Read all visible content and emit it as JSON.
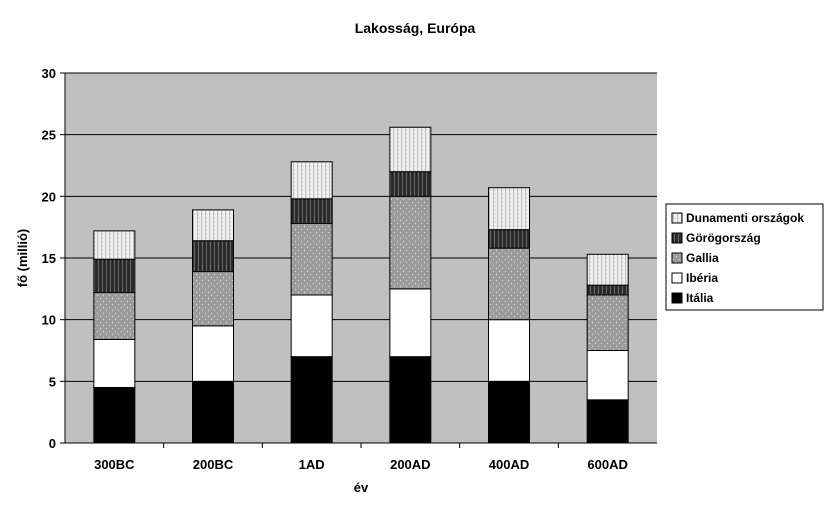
{
  "chart_data": {
    "type": "bar",
    "stacked": true,
    "title": "Lakosság, Európa",
    "xlabel": "év",
    "ylabel": "fő (millió)",
    "ylim": [
      0,
      30
    ],
    "yticks": [
      0,
      5,
      10,
      15,
      20,
      25,
      30
    ],
    "grid": true,
    "legend_position": "right",
    "categories": [
      "300BC",
      "200BC",
      "1AD",
      "200AD",
      "400AD",
      "600AD"
    ],
    "series": [
      {
        "name": "Itália",
        "pattern": "solid-black",
        "values": [
          4.5,
          5.0,
          7.0,
          7.0,
          5.0,
          3.5
        ]
      },
      {
        "name": "Ibéria",
        "pattern": "white",
        "values": [
          3.9,
          4.5,
          5.0,
          5.5,
          5.0,
          4.0
        ]
      },
      {
        "name": "Gallia",
        "pattern": "gray-dotted",
        "values": [
          3.8,
          4.4,
          5.8,
          7.5,
          5.8,
          4.5
        ]
      },
      {
        "name": "Görögország",
        "pattern": "dark-striped",
        "values": [
          2.7,
          2.5,
          2.0,
          2.0,
          1.5,
          0.8
        ]
      },
      {
        "name": "Dunamenti országok",
        "pattern": "light-dotted",
        "values": [
          2.3,
          2.5,
          3.0,
          3.6,
          3.4,
          2.5
        ]
      }
    ],
    "legend_order": [
      "Dunamenti országok",
      "Görögország",
      "Gallia",
      "Ibéria",
      "Itália"
    ],
    "colors": {
      "plot_background": "#c0c0c0",
      "gridline": "#000000",
      "solid-black": "#000000",
      "white": "#ffffff",
      "gray-dotted": "#9a9a9a",
      "dark-striped": "#3a3a3a",
      "light-dotted": "#e8e8e8"
    }
  }
}
